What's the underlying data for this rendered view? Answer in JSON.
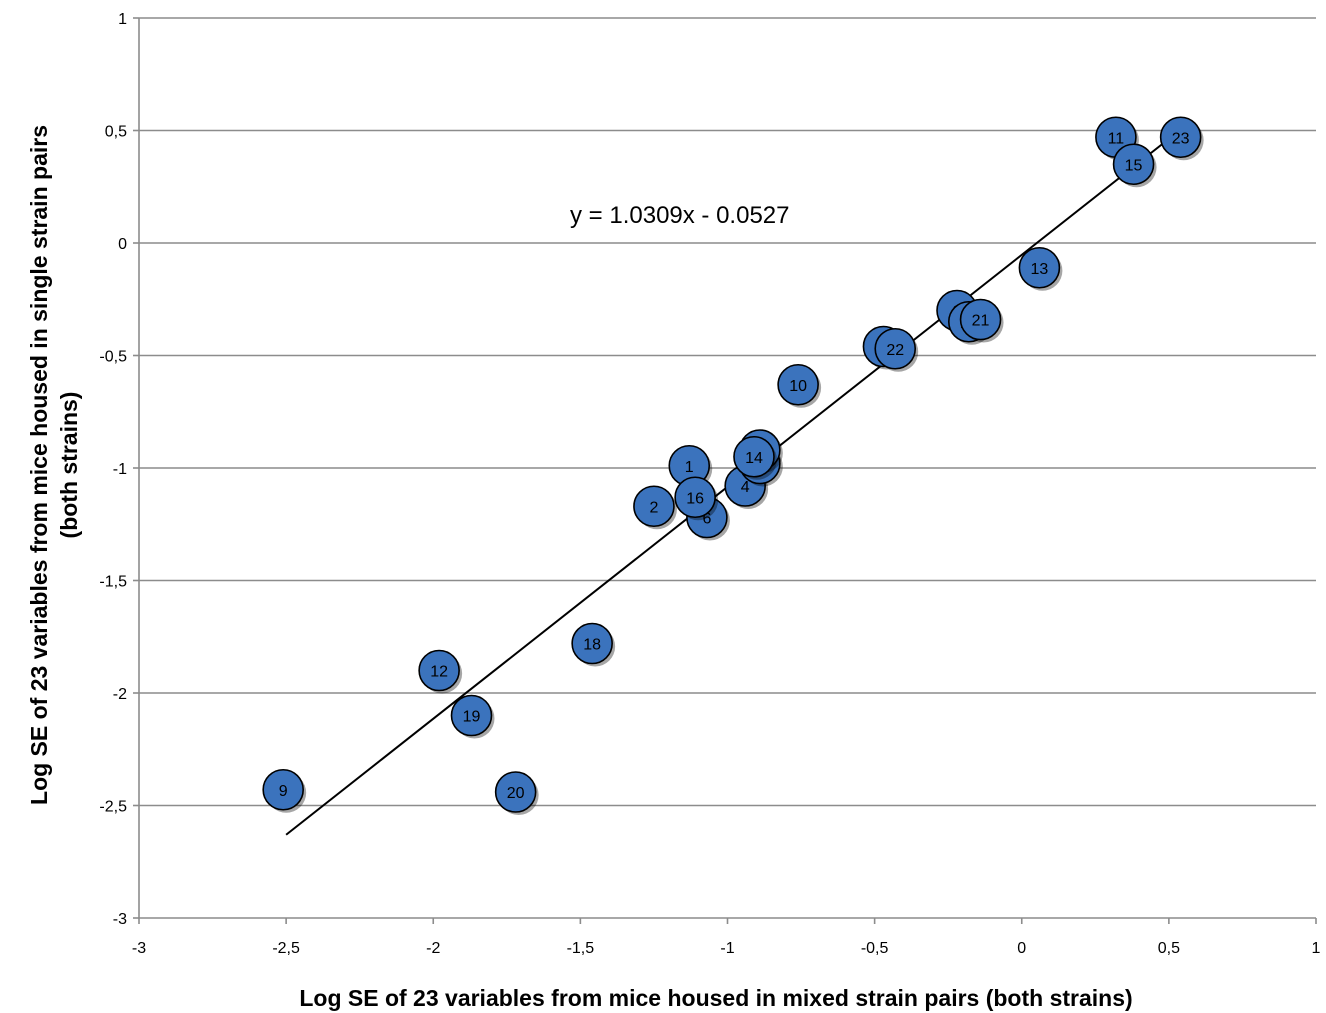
{
  "chart_data": {
    "type": "scatter",
    "title": "",
    "xlabel": "Log SE of 23 variables from mice housed in mixed strain pairs (both strains)",
    "ylabel_line1": "Log SE of 23 variables from mice housed in single strain pairs",
    "ylabel_line2": "(both strains)",
    "xlim": [
      -3,
      1
    ],
    "ylim": [
      -3,
      1
    ],
    "x_ticks": [
      -3,
      -2.5,
      -2,
      -1.5,
      -1,
      -0.5,
      0,
      0.5,
      1
    ],
    "x_tick_labels": [
      "-3",
      "-2,5",
      "-2",
      "-1,5",
      "-1",
      "-0,5",
      "0",
      "0,5",
      "1"
    ],
    "y_ticks": [
      -3,
      -2.5,
      -2,
      -1.5,
      -1,
      -0.5,
      0,
      0.5,
      1
    ],
    "y_tick_labels": [
      "-3",
      "-2,5",
      "-2",
      "-1,5",
      "-1",
      "-0,5",
      "0",
      "0,5",
      "1"
    ],
    "grid": "horizontal",
    "marker_color": "#3B73BD",
    "marker_edge_color": "#000000",
    "trendline": {
      "equation": "y = 1.0309x - 0.0527",
      "slope": 1.0309,
      "intercept": -0.0527,
      "x_start": -2.5,
      "x_end": 0.54
    },
    "points": [
      {
        "label": "1",
        "x": -1.13,
        "y": -0.99
      },
      {
        "label": "2",
        "x": -1.25,
        "y": -1.17
      },
      {
        "label": "3",
        "x": -0.47,
        "y": -0.46
      },
      {
        "label": "4",
        "x": -0.94,
        "y": -1.08
      },
      {
        "label": "5",
        "x": -0.89,
        "y": -0.98
      },
      {
        "label": "6",
        "x": -1.07,
        "y": -1.22
      },
      {
        "label": "7",
        "x": -0.89,
        "y": -0.92
      },
      {
        "label": "8",
        "x": -0.22,
        "y": -0.3
      },
      {
        "label": "9",
        "x": -2.51,
        "y": -2.43
      },
      {
        "label": "10",
        "x": -0.76,
        "y": -0.63
      },
      {
        "label": "11",
        "x": 0.32,
        "y": 0.47
      },
      {
        "label": "12",
        "x": -1.98,
        "y": -1.9
      },
      {
        "label": "13",
        "x": 0.06,
        "y": -0.11
      },
      {
        "label": "14",
        "x": -0.91,
        "y": -0.95
      },
      {
        "label": "15",
        "x": 0.38,
        "y": 0.35
      },
      {
        "label": "16",
        "x": -1.11,
        "y": -1.13
      },
      {
        "label": "17",
        "x": -0.18,
        "y": -0.35
      },
      {
        "label": "18",
        "x": -1.46,
        "y": -1.78
      },
      {
        "label": "19",
        "x": -1.87,
        "y": -2.1
      },
      {
        "label": "20",
        "x": -1.72,
        "y": -2.44
      },
      {
        "label": "21",
        "x": -0.14,
        "y": -0.34
      },
      {
        "label": "22",
        "x": -0.43,
        "y": -0.47
      },
      {
        "label": "23",
        "x": 0.54,
        "y": 0.47
      }
    ]
  }
}
